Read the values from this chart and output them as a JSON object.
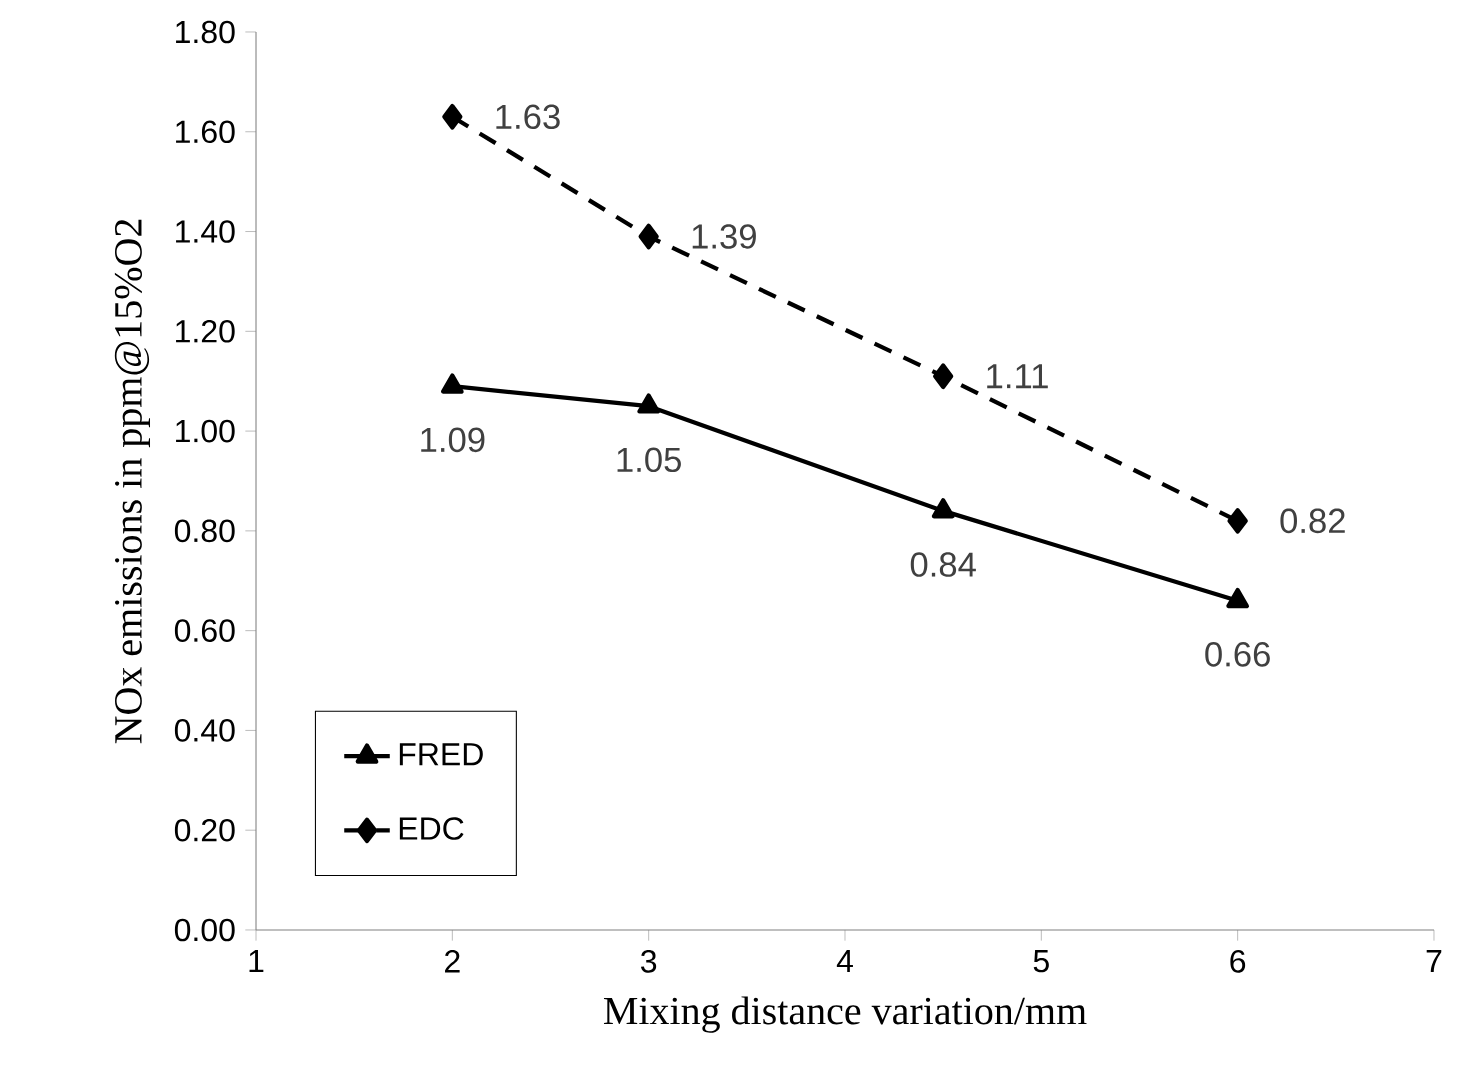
{
  "chart_data": {
    "type": "line",
    "xlabel": "Mixing distance variation/mm",
    "ylabel": "NOx emissions in ppm@15%O2",
    "x": [
      2,
      3,
      4.5,
      6
    ],
    "series": [
      {
        "name": "FRED",
        "color": "#000000",
        "values": [
          1.09,
          1.05,
          0.84,
          0.66
        ],
        "marker": "triangle",
        "line_style": "solid"
      },
      {
        "name": "EDC",
        "color": "#000000",
        "values": [
          1.63,
          1.39,
          1.11,
          0.82
        ],
        "marker": "diamond",
        "line_style": "dashed"
      }
    ],
    "xlim": [
      1,
      7
    ],
    "xticks": [
      1,
      2,
      3,
      4,
      5,
      6,
      7
    ],
    "ylim": [
      0,
      1.8
    ],
    "yticks": [
      {
        "value": 0,
        "label": "0.00"
      },
      {
        "value": 0.2,
        "label": "0.20"
      },
      {
        "value": 0.4,
        "label": "0.40"
      },
      {
        "value": 0.6,
        "label": "0.60"
      },
      {
        "value": 0.8,
        "label": "0.80"
      },
      {
        "value": 1.0,
        "label": "1.00"
      },
      {
        "value": 1.2,
        "label": "1.20"
      },
      {
        "value": 1.4,
        "label": "1.40"
      },
      {
        "value": 1.6,
        "label": "1.60"
      },
      {
        "value": 1.8,
        "label": "1.80"
      }
    ],
    "data_labels": true,
    "legend": "bottom left",
    "grid": false
  }
}
